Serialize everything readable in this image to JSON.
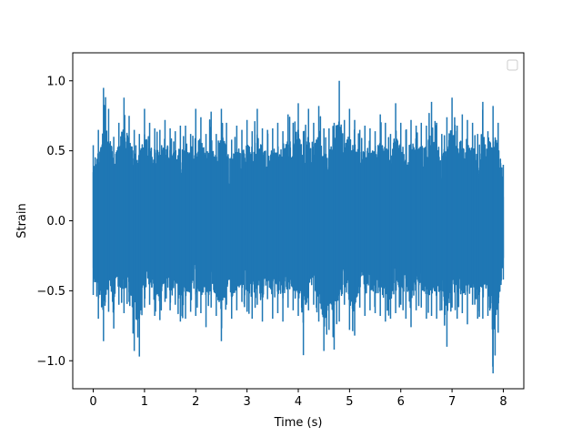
{
  "chart_data": {
    "type": "line",
    "title": "",
    "xlabel": "Time (s)",
    "ylabel": "Strain",
    "xlim": [
      -0.4,
      8.4
    ],
    "ylim": [
      -1.2,
      1.2
    ],
    "x_ticks": [
      0,
      1,
      2,
      3,
      4,
      5,
      6,
      7,
      8
    ],
    "x_tick_labels": [
      "0",
      "1",
      "2",
      "3",
      "4",
      "5",
      "6",
      "7",
      "8"
    ],
    "y_ticks": [
      -1.0,
      -0.5,
      0.0,
      0.5,
      1.0
    ],
    "y_tick_labels": [
      "−1.0",
      "−0.5",
      "0.0",
      "0.5",
      "1.0"
    ],
    "grid": false,
    "legend": {
      "position": "top-right",
      "entries": []
    },
    "series": [
      {
        "color": "#1f77b4",
        "x": [
          0,
          0.1,
          0.2,
          0.3,
          0.4,
          0.5,
          0.6,
          0.7,
          0.8,
          0.9,
          1.0,
          1.1,
          1.2,
          1.3,
          1.4,
          1.5,
          1.6,
          1.7,
          1.8,
          1.9,
          2.0,
          2.1,
          2.2,
          2.3,
          2.4,
          2.5,
          2.6,
          2.7,
          2.8,
          2.9,
          3.0,
          3.1,
          3.2,
          3.3,
          3.4,
          3.5,
          3.6,
          3.7,
          3.8,
          3.9,
          4.0,
          4.1,
          4.2,
          4.3,
          4.4,
          4.5,
          4.6,
          4.7,
          4.8,
          4.9,
          5.0,
          5.1,
          5.2,
          5.3,
          5.4,
          5.5,
          5.6,
          5.7,
          5.8,
          5.9,
          6.0,
          6.1,
          6.2,
          6.3,
          6.4,
          6.5,
          6.6,
          6.7,
          6.8,
          6.9,
          7.0,
          7.1,
          7.2,
          7.3,
          7.4,
          7.5,
          7.6,
          7.7,
          7.8,
          7.9,
          8.0
        ],
        "y_max": [
          0.54,
          0.65,
          0.95,
          0.8,
          0.6,
          0.7,
          0.88,
          0.75,
          0.65,
          0.62,
          0.8,
          0.7,
          0.66,
          0.65,
          0.72,
          0.66,
          0.64,
          0.68,
          0.68,
          0.62,
          0.8,
          0.74,
          0.62,
          0.78,
          0.62,
          0.8,
          0.7,
          0.58,
          0.68,
          0.65,
          0.72,
          0.64,
          0.8,
          0.66,
          0.65,
          0.66,
          0.7,
          0.64,
          0.76,
          0.7,
          0.84,
          0.64,
          0.8,
          0.7,
          0.82,
          0.66,
          0.66,
          0.7,
          1.0,
          0.72,
          0.8,
          0.72,
          0.65,
          0.68,
          0.66,
          0.64,
          0.76,
          0.7,
          0.62,
          0.84,
          0.7,
          0.65,
          0.72,
          0.68,
          0.7,
          0.68,
          0.85,
          0.7,
          0.62,
          0.74,
          0.88,
          0.68,
          0.76,
          0.72,
          0.7,
          0.62,
          0.85,
          0.64,
          0.82,
          0.7,
          0.4
        ],
        "y_min": [
          -0.53,
          -0.7,
          -0.86,
          -0.65,
          -0.77,
          -0.6,
          -0.66,
          -0.58,
          -0.93,
          -0.97,
          -0.62,
          -0.6,
          -0.68,
          -0.71,
          -0.58,
          -0.64,
          -0.6,
          -0.72,
          -0.7,
          -0.65,
          -0.68,
          -0.66,
          -0.76,
          -0.62,
          -0.68,
          -0.86,
          -0.6,
          -0.7,
          -0.64,
          -0.58,
          -0.65,
          -0.7,
          -0.6,
          -0.72,
          -0.56,
          -0.7,
          -0.66,
          -0.72,
          -0.62,
          -0.64,
          -0.68,
          -0.96,
          -0.64,
          -0.6,
          -0.72,
          -0.93,
          -0.78,
          -0.92,
          -0.72,
          -0.6,
          -0.78,
          -0.82,
          -0.62,
          -0.68,
          -0.64,
          -0.66,
          -0.68,
          -0.72,
          -0.7,
          -0.66,
          -0.6,
          -0.7,
          -0.76,
          -0.64,
          -0.62,
          -0.7,
          -0.68,
          -0.7,
          -0.64,
          -0.9,
          -0.62,
          -0.7,
          -0.66,
          -0.74,
          -0.6,
          -0.7,
          -0.7,
          -0.68,
          -1.09,
          -0.8,
          -0.42
        ]
      }
    ]
  }
}
